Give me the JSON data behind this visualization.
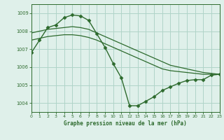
{
  "title": "Graphe pression niveau de la mer (hPa)",
  "bg_color": "#dff0ea",
  "line_color": "#2d6a2d",
  "grid_color": "#b0d4c8",
  "xlim": [
    0,
    23
  ],
  "ylim": [
    1003.5,
    1009.5
  ],
  "yticks": [
    1004,
    1005,
    1006,
    1007,
    1008,
    1009
  ],
  "xticks": [
    0,
    1,
    2,
    3,
    4,
    5,
    6,
    7,
    8,
    9,
    10,
    11,
    12,
    13,
    14,
    15,
    16,
    17,
    18,
    19,
    20,
    21,
    22,
    23
  ],
  "series": [
    {
      "x": [
        0,
        1,
        2,
        3,
        4,
        5,
        6,
        7,
        8,
        9,
        10,
        11,
        12,
        13,
        14,
        15,
        16,
        17,
        18,
        19,
        20,
        21,
        22,
        23
      ],
      "y": [
        1006.8,
        1007.5,
        1008.2,
        1008.35,
        1008.75,
        1008.9,
        1008.85,
        1008.6,
        1007.85,
        1007.1,
        1006.2,
        1005.4,
        1003.85,
        1003.85,
        1004.1,
        1004.35,
        1004.7,
        1004.9,
        1005.1,
        1005.25,
        1005.3,
        1005.3,
        1005.55,
        1005.6
      ],
      "marker": "D",
      "markersize": 2.5,
      "linewidth": 1.0
    },
    {
      "x": [
        0,
        1,
        2,
        3,
        4,
        5,
        6,
        7,
        8,
        9,
        10,
        11,
        12,
        13,
        14,
        15,
        16,
        17,
        18,
        19,
        20,
        21,
        22,
        23
      ],
      "y": [
        1007.9,
        1008.0,
        1008.1,
        1008.15,
        1008.2,
        1008.25,
        1008.2,
        1008.1,
        1007.9,
        1007.7,
        1007.5,
        1007.3,
        1007.1,
        1006.9,
        1006.7,
        1006.5,
        1006.3,
        1006.1,
        1006.0,
        1005.9,
        1005.8,
        1005.7,
        1005.65,
        1005.6
      ],
      "marker": null,
      "markersize": 0,
      "linewidth": 0.9
    },
    {
      "x": [
        0,
        1,
        2,
        3,
        4,
        5,
        6,
        7,
        8,
        9,
        10,
        11,
        12,
        13,
        14,
        15,
        16,
        17,
        18,
        19,
        20,
        21,
        22,
        23
      ],
      "y": [
        1007.5,
        1007.6,
        1007.7,
        1007.75,
        1007.8,
        1007.8,
        1007.75,
        1007.65,
        1007.5,
        1007.3,
        1007.1,
        1006.9,
        1006.7,
        1006.5,
        1006.3,
        1006.1,
        1005.9,
        1005.8,
        1005.75,
        1005.7,
        1005.65,
        1005.6,
        1005.6,
        1005.6
      ],
      "marker": null,
      "markersize": 0,
      "linewidth": 0.9
    }
  ]
}
